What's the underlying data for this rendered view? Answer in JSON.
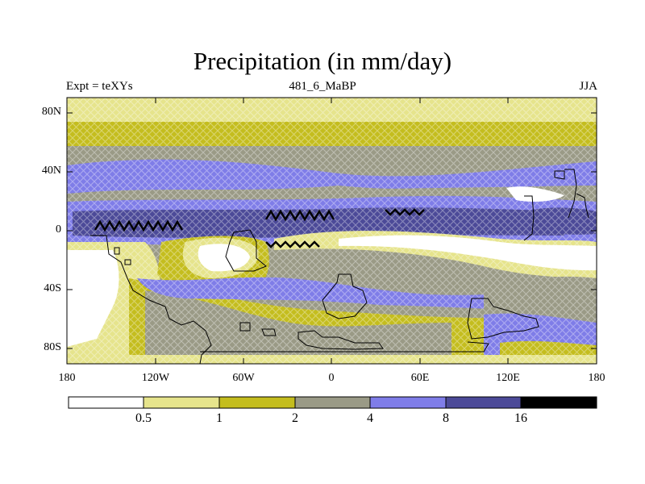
{
  "header": {
    "title": "Precipitation (in mm/day)",
    "left": "Expt = teXYs",
    "center": "481_6_MaBP",
    "right": "JJA"
  },
  "map": {
    "lon_ticks": [
      "180",
      "120W",
      "60W",
      "0",
      "60E",
      "120E",
      "180"
    ],
    "lat_ticks": [
      "80N",
      "40N",
      "0",
      "40S",
      "80S"
    ],
    "lon_range": [
      -180,
      180
    ],
    "lat_range": [
      -90,
      90
    ],
    "hatching": "cross-hatched stippling over all shaded regions",
    "coastlines": "black outline of paleo-continents"
  },
  "legend": {
    "colors": [
      "#ffffff",
      "#e6e48c",
      "#c4bd1e",
      "#9a9a86",
      "#7f7de8",
      "#4c4a98",
      "#000000"
    ],
    "labels": [
      "0.5",
      "1",
      "2",
      "4",
      "8",
      "16"
    ],
    "units": "mm/day"
  }
}
